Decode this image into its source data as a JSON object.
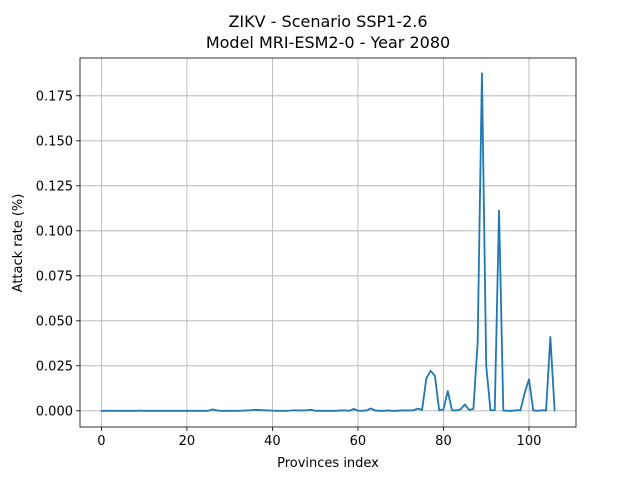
{
  "chart_data": {
    "type": "line",
    "title_line1": "ZIKV - Scenario SSP1-2.6",
    "title_line2": "Model MRI-ESM2-0 - Year 2080",
    "xlabel": "Provinces index",
    "ylabel": "Attack rate (%)",
    "xlim": [
      -5,
      111
    ],
    "ylim": [
      -0.009,
      0.196
    ],
    "x_ticks": [
      0,
      20,
      40,
      60,
      80,
      100
    ],
    "x_tick_labels": [
      "0",
      "20",
      "40",
      "60",
      "80",
      "100"
    ],
    "y_ticks": [
      0.0,
      0.025,
      0.05,
      0.075,
      0.1,
      0.125,
      0.15,
      0.175
    ],
    "y_tick_labels": [
      "0.000",
      "0.025",
      "0.050",
      "0.075",
      "0.100",
      "0.125",
      "0.150",
      "0.175"
    ],
    "grid": true,
    "line_color": "#1f77b4",
    "series": [
      {
        "x": [
          0,
          1,
          2,
          3,
          4,
          5,
          6,
          7,
          8,
          9,
          10,
          11,
          12,
          13,
          14,
          15,
          16,
          17,
          18,
          19,
          20,
          21,
          22,
          23,
          24,
          25,
          26,
          27,
          28,
          29,
          30,
          31,
          32,
          33,
          34,
          35,
          36,
          37,
          38,
          39,
          40,
          41,
          42,
          43,
          44,
          45,
          46,
          47,
          48,
          49,
          50,
          51,
          52,
          53,
          54,
          55,
          56,
          57,
          58,
          59,
          60,
          61,
          62,
          63,
          64,
          65,
          66,
          67,
          68,
          69,
          70,
          71,
          72,
          73,
          74,
          75,
          76,
          77,
          78,
          79,
          80,
          81,
          82,
          83,
          84,
          85,
          86,
          87,
          88,
          89,
          90,
          91,
          92,
          93,
          94,
          95,
          96,
          97,
          98,
          99,
          100,
          101,
          102,
          103,
          104,
          105,
          106
        ],
        "values": [
          0,
          0,
          0,
          0,
          0,
          0,
          0,
          0,
          0,
          0.0001,
          0,
          0,
          0,
          0,
          0,
          0,
          0,
          0,
          0,
          0,
          0,
          0,
          0,
          0,
          0,
          0,
          0.0008,
          0.0002,
          0,
          0,
          0,
          0,
          0,
          0.0001,
          0.0002,
          0.0003,
          0.0006,
          0.0004,
          0.0003,
          0.0002,
          0.0001,
          0,
          0,
          0,
          0.0001,
          0.0003,
          0.0002,
          0.0002,
          0.0003,
          0.0006,
          0,
          0,
          0,
          0,
          0,
          0,
          0.0002,
          0.0002,
          0,
          0.001,
          0.0001,
          0,
          0.0002,
          0.0013,
          0.0002,
          0,
          0,
          0.0002,
          0,
          0,
          0.0002,
          0.0002,
          0.0002,
          0.0003,
          0.0012,
          0.0005,
          0.018,
          0.0222,
          0.0195,
          0.0003,
          0.0007,
          0.011,
          0.0003,
          0.0002,
          0.0008,
          0.0035,
          0.0005,
          0.001,
          0.038,
          0.1875,
          0.025,
          0.0003,
          0.0003,
          0.1112,
          0.0002,
          0,
          0,
          0.0003,
          0.0003,
          0.01,
          0.0175,
          0.0002,
          0,
          0.0003,
          0.0002,
          0.041,
          0.0002
        ]
      }
    ]
  }
}
